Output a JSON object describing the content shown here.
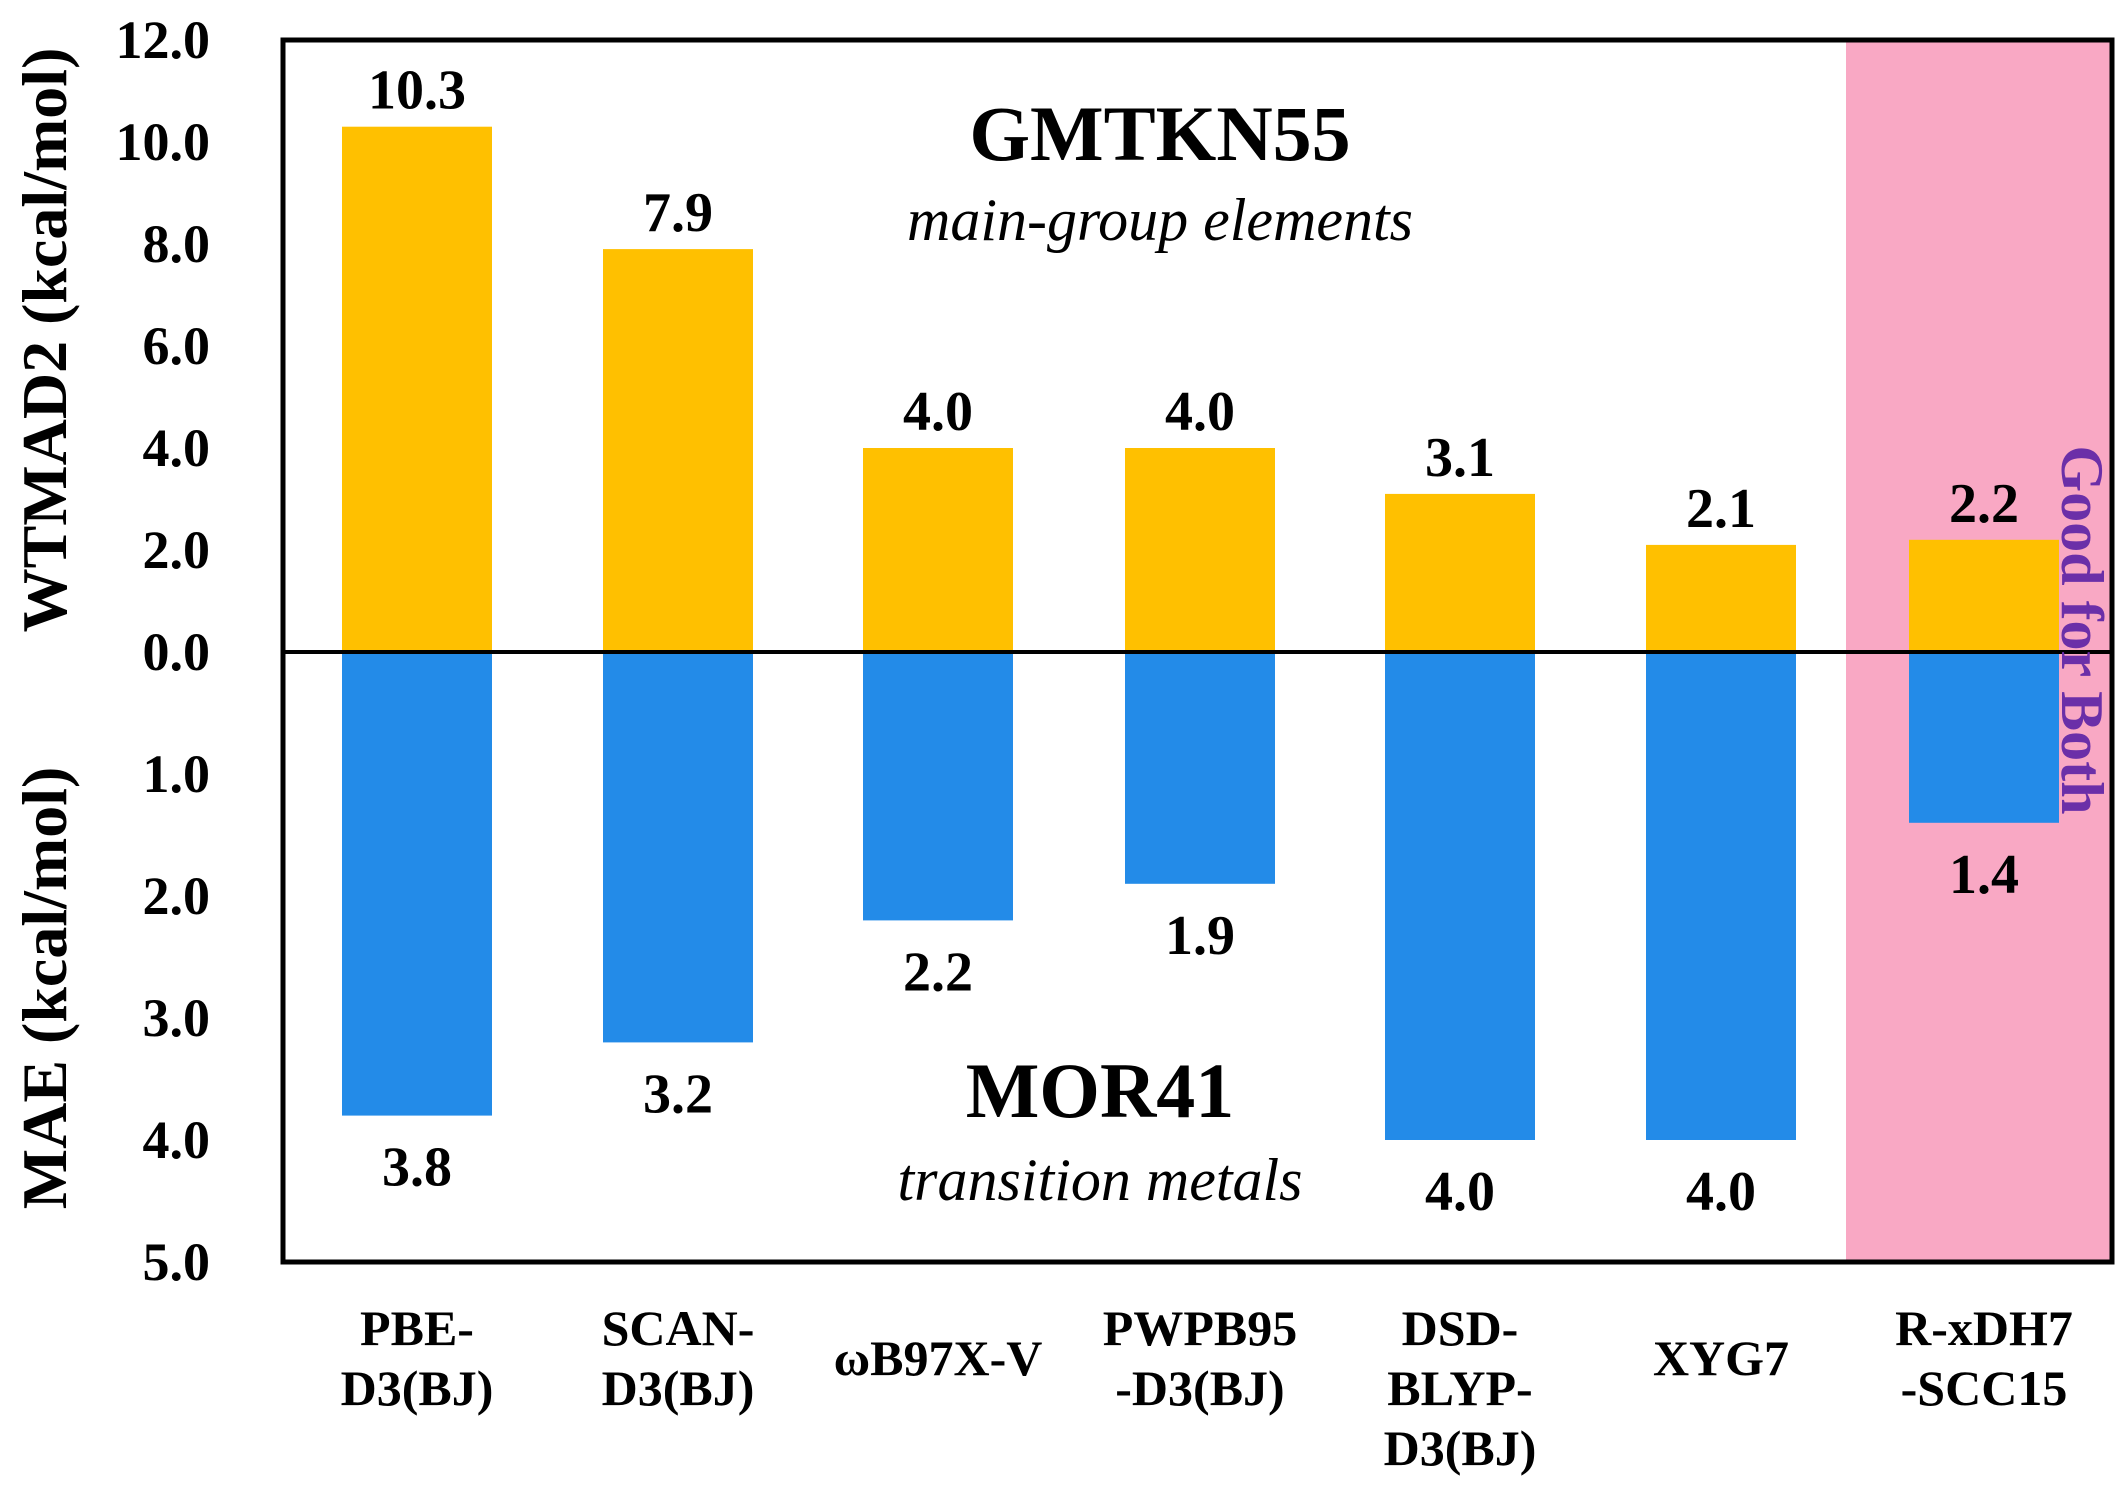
{
  "chart_data": {
    "type": "bar",
    "categories": [
      [
        "PBE-",
        "D3(BJ)"
      ],
      [
        "SCAN-",
        "D3(BJ)"
      ],
      [
        "ωB97X-V"
      ],
      [
        "PWPB95",
        "-D3(BJ)"
      ],
      [
        "DSD-",
        "BLYP-",
        "D3(BJ)"
      ],
      [
        "XYG7"
      ],
      [
        "R-xDH7",
        "-SCC15"
      ]
    ],
    "series": [
      {
        "values": [
          10.3,
          7.9,
          4.0,
          4.0,
          3.1,
          2.1,
          2.2
        ],
        "labels": [
          "10.3",
          "7.9",
          "4.0",
          "4.0",
          "3.1",
          "2.1",
          "2.2"
        ],
        "direction": "up",
        "color": "#FFC000"
      },
      {
        "values": [
          3.8,
          3.2,
          2.2,
          1.9,
          4.0,
          4.0,
          1.4
        ],
        "labels": [
          "3.8",
          "3.2",
          "2.2",
          "1.9",
          "4.0",
          "4.0",
          "1.4"
        ],
        "direction": "down",
        "color": "#238BE8"
      }
    ],
    "upper_axis": {
      "label": "WTMAD2 (kcal/mol)",
      "range": [
        0,
        12
      ],
      "ticks": [
        "0.0",
        "2.0",
        "4.0",
        "6.0",
        "8.0",
        "10.0",
        "12.0"
      ]
    },
    "lower_axis": {
      "label": "MAE (kcal/mol)",
      "range": [
        0,
        5
      ],
      "ticks": [
        "0.0",
        "1.0",
        "2.0",
        "3.0",
        "4.0",
        "5.0"
      ]
    },
    "upper_annotation": {
      "title": "GMTKN55",
      "subtitle": "main-group elements"
    },
    "lower_annotation": {
      "title": "MOR41",
      "subtitle": "transition metals"
    },
    "highlight": {
      "category_index": 6,
      "text": "Good for Both",
      "color": "#F9A8C4",
      "text_color": "#6B2FA8"
    },
    "grid": false,
    "legend": "none"
  }
}
